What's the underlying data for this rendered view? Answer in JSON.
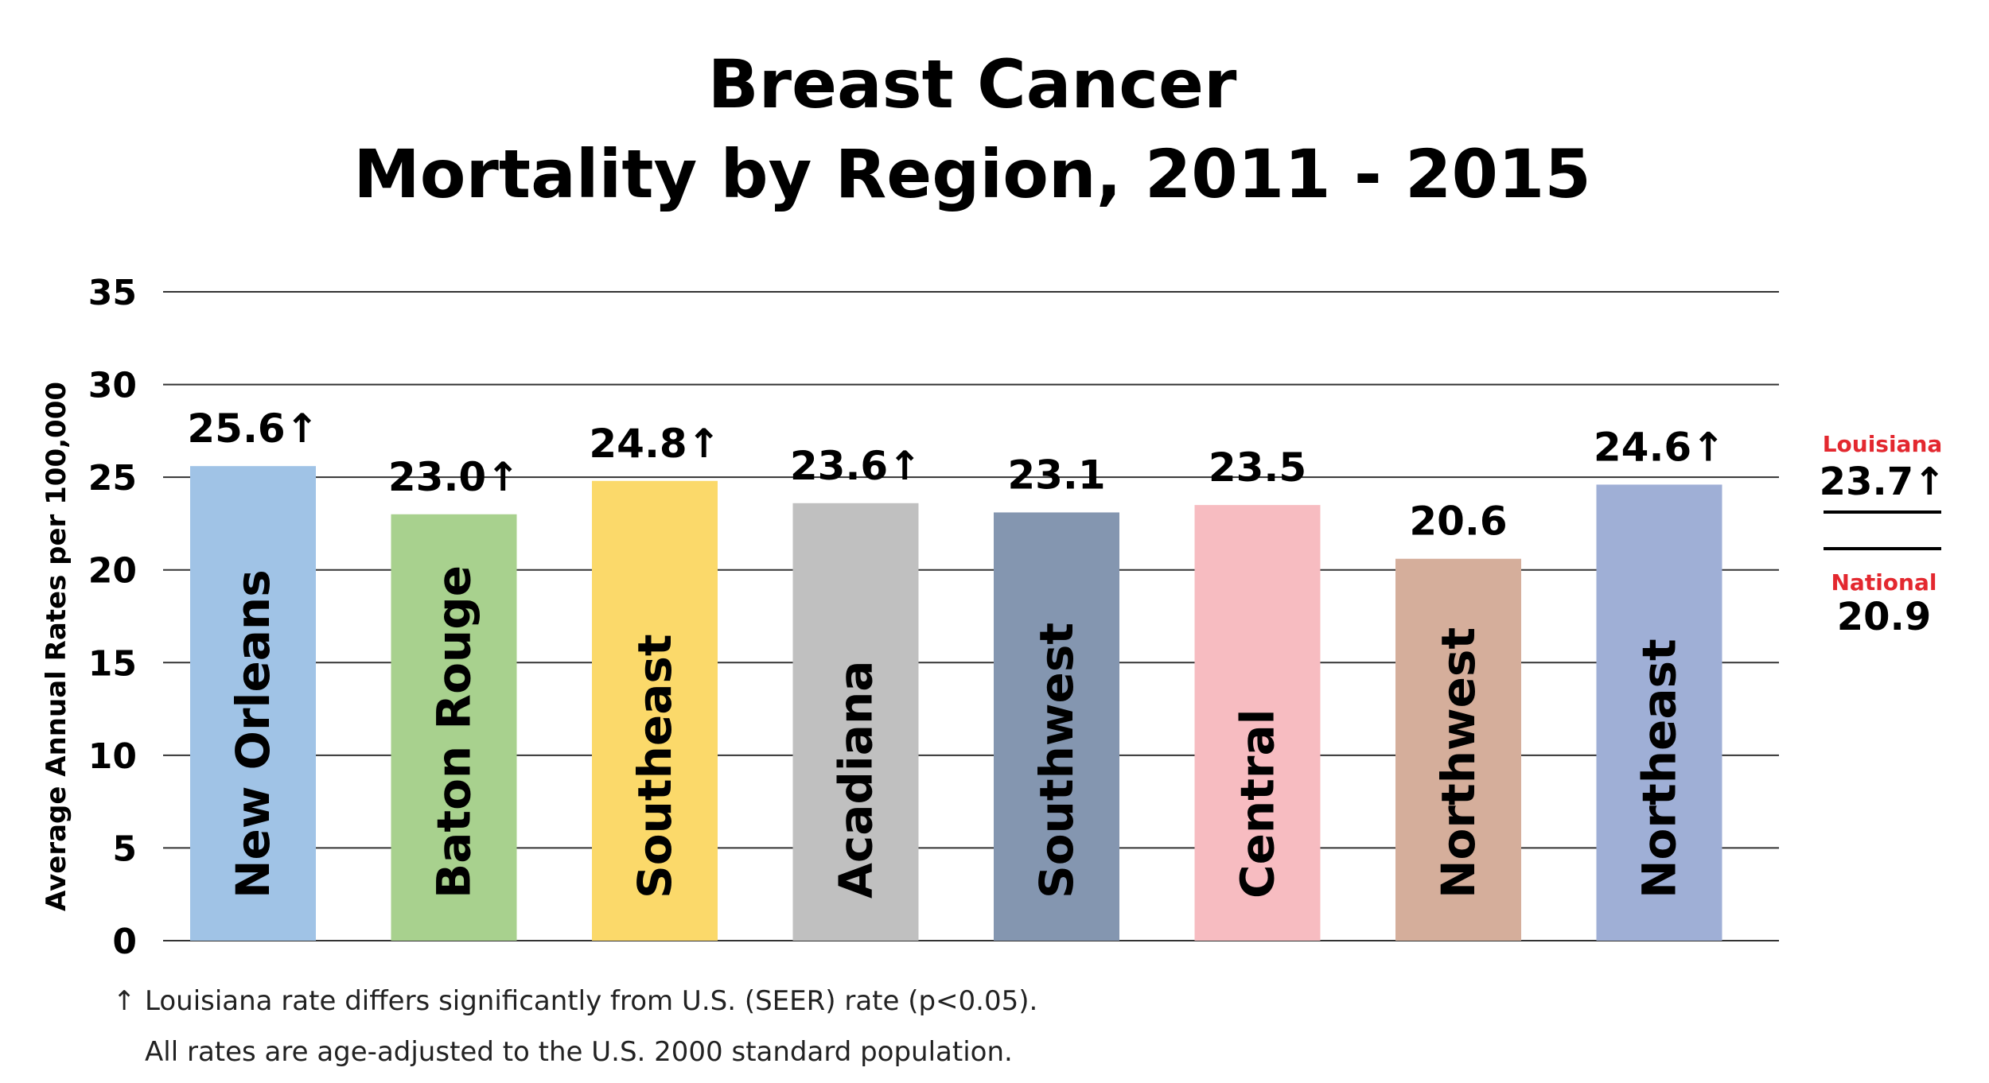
{
  "chart_data": {
    "type": "bar",
    "title_lines": [
      "Breast Cancer",
      "Mortality by Region, 2011 - 2015"
    ],
    "ylabel": "Average Annual Rates per 100,000",
    "xlabel": "",
    "ylim": [
      0,
      35
    ],
    "yticks": [
      "0",
      "5",
      "10",
      "15",
      "20",
      "25",
      "30",
      "35"
    ],
    "grid": true,
    "categories": [
      "New Orleans",
      "Baton Rouge",
      "Southeast",
      "Acadiana",
      "Southwest",
      "Central",
      "Northwest",
      "Northeast"
    ],
    "values": [
      25.6,
      23.0,
      24.8,
      23.6,
      23.1,
      23.5,
      20.6,
      24.6
    ],
    "value_labels": [
      "25.6",
      "23.0",
      "24.8",
      "23.6",
      "23.1",
      "23.5",
      "20.6",
      "24.6"
    ],
    "significant": [
      true,
      true,
      true,
      true,
      false,
      false,
      false,
      true
    ],
    "bar_colors": [
      "#a0c3e6",
      "#a8d18e",
      "#fbd96a",
      "#c0c0c0",
      "#8496b0",
      "#f7bcc1",
      "#d5ae9b",
      "#9fafd6"
    ],
    "reference": {
      "louisiana": {
        "name": "Louisiana",
        "value": 23.7,
        "label": "23.7",
        "significant": true
      },
      "national": {
        "name": "National",
        "value": 20.9,
        "label": "20.9",
        "significant": false
      }
    },
    "arrow_symbol": "↑",
    "footnotes": [
      "Louisiana rate differs significantly from U.S. (SEER) rate (p<0.05).",
      "All rates are age-adjusted to the U.S. 2000 standard population."
    ],
    "accent_color": "#e3282f"
  }
}
